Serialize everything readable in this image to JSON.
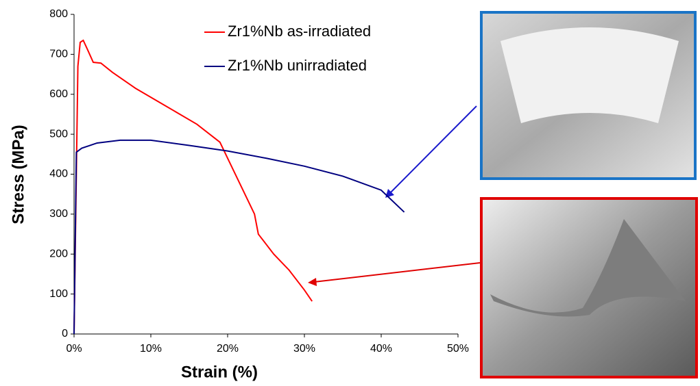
{
  "chart_data": {
    "type": "line",
    "xlabel": "Strain (%)",
    "ylabel": "Stress (MPa)",
    "xlim": [
      0,
      50
    ],
    "ylim": [
      0,
      800
    ],
    "xticks": [
      {
        "value": 0,
        "label": "0%"
      },
      {
        "value": 10,
        "label": "10%"
      },
      {
        "value": 20,
        "label": "20%"
      },
      {
        "value": 30,
        "label": "30%"
      },
      {
        "value": 40,
        "label": "40%"
      },
      {
        "value": 50,
        "label": "50%"
      }
    ],
    "yticks": [
      0,
      100,
      200,
      300,
      400,
      500,
      600,
      700,
      800
    ],
    "legend": "top",
    "series": [
      {
        "name": "Zr1%Nb as-irradiated",
        "color": "#ff0000",
        "x": [
          0,
          0.5,
          0.8,
          1.2,
          1.8,
          2.5,
          3.5,
          5,
          8,
          12,
          16,
          19,
          20,
          22,
          23.5,
          24,
          26,
          28,
          30,
          31
        ],
        "values": [
          0,
          670,
          730,
          735,
          710,
          680,
          678,
          655,
          615,
          570,
          525,
          480,
          440,
          360,
          300,
          250,
          200,
          160,
          110,
          82
        ]
      },
      {
        "name": "Zr1%Nb unirradiated",
        "color": "#000080",
        "x": [
          0,
          0.3,
          1,
          3,
          6,
          10,
          15,
          20,
          25,
          30,
          35,
          40,
          43
        ],
        "values": [
          0,
          455,
          465,
          478,
          485,
          485,
          472,
          458,
          440,
          420,
          395,
          360,
          305
        ]
      }
    ]
  }
}
